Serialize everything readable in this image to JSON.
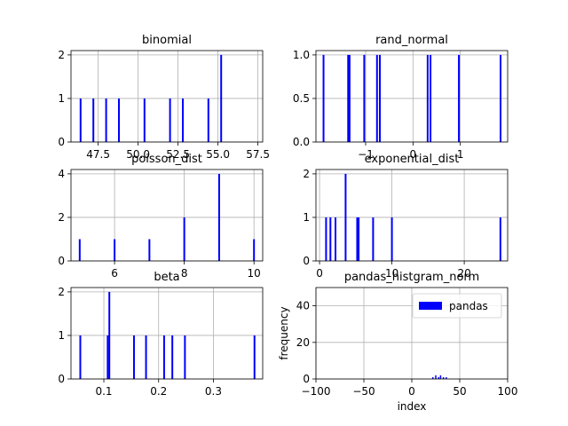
{
  "colors": {
    "bar": "#0000ff",
    "grid": "#b0b0b0",
    "axis": "#000000"
  },
  "chart_data": [
    {
      "type": "bar",
      "title": "binomial",
      "xlim": [
        45.8,
        57.8
      ],
      "ylim": [
        0,
        2.1
      ],
      "xticks": [
        47.5,
        50.0,
        52.5,
        55.0,
        57.5
      ],
      "xtick_labels": [
        "47.5",
        "50.0",
        "52.5",
        "55.0",
        "57.5"
      ],
      "yticks": [
        0,
        1,
        2
      ],
      "ytick_labels": [
        "0",
        "1",
        "2"
      ],
      "grid": true,
      "bins": [
        {
          "x": 46.4,
          "count": 1
        },
        {
          "x": 47.2,
          "count": 1
        },
        {
          "x": 48.0,
          "count": 1
        },
        {
          "x": 48.8,
          "count": 1
        },
        {
          "x": 50.4,
          "count": 1
        },
        {
          "x": 52.0,
          "count": 1
        },
        {
          "x": 52.8,
          "count": 1
        },
        {
          "x": 54.4,
          "count": 1
        },
        {
          "x": 55.2,
          "count": 2
        }
      ]
    },
    {
      "type": "bar",
      "title": "rand_normal",
      "xlim": [
        -2.05,
        2.0
      ],
      "ylim": [
        0,
        1.05
      ],
      "xticks": [
        -1,
        0,
        1
      ],
      "xtick_labels": [
        "−1",
        "0",
        "1"
      ],
      "yticks": [
        0.0,
        0.5,
        1.0
      ],
      "ytick_labels": [
        "0.0",
        "0.5",
        "1.0"
      ],
      "grid": true,
      "bins": [
        {
          "x": -1.89,
          "count": 1
        },
        {
          "x": -1.37,
          "count": 1
        },
        {
          "x": -1.34,
          "count": 1
        },
        {
          "x": -1.03,
          "count": 1
        },
        {
          "x": -0.76,
          "count": 1
        },
        {
          "x": -0.7,
          "count": 1
        },
        {
          "x": 0.31,
          "count": 1
        },
        {
          "x": 0.37,
          "count": 1
        },
        {
          "x": 0.97,
          "count": 1
        },
        {
          "x": 1.85,
          "count": 1
        }
      ]
    },
    {
      "type": "bar",
      "title": "poisson_dist",
      "xlim": [
        4.75,
        10.25
      ],
      "ylim": [
        0,
        4.2
      ],
      "xticks": [
        6,
        8,
        10
      ],
      "xtick_labels": [
        "6",
        "8",
        "10"
      ],
      "yticks": [
        0,
        2,
        4
      ],
      "ytick_labels": [
        "0",
        "2",
        "4"
      ],
      "grid": true,
      "bins": [
        {
          "x": 5.0,
          "count": 1
        },
        {
          "x": 6.0,
          "count": 1
        },
        {
          "x": 7.0,
          "count": 1
        },
        {
          "x": 8.0,
          "count": 2
        },
        {
          "x": 9.0,
          "count": 4
        },
        {
          "x": 10.0,
          "count": 1
        }
      ]
    },
    {
      "type": "bar",
      "title": "exponential_dist",
      "xlim": [
        -0.5,
        26.0
      ],
      "ylim": [
        0,
        2.1
      ],
      "xticks": [
        0,
        10,
        20
      ],
      "xtick_labels": [
        "0",
        "10",
        "20"
      ],
      "yticks": [
        0,
        1,
        2
      ],
      "ytick_labels": [
        "0",
        "1",
        "2"
      ],
      "grid": true,
      "bins": [
        {
          "x": 0.9,
          "count": 1
        },
        {
          "x": 1.5,
          "count": 1
        },
        {
          "x": 2.2,
          "count": 1
        },
        {
          "x": 3.6,
          "count": 2
        },
        {
          "x": 5.2,
          "count": 1
        },
        {
          "x": 5.4,
          "count": 1
        },
        {
          "x": 7.4,
          "count": 1
        },
        {
          "x": 10.0,
          "count": 1
        },
        {
          "x": 25.0,
          "count": 1
        }
      ]
    },
    {
      "type": "bar",
      "title": "beta",
      "xlim": [
        0.04,
        0.39
      ],
      "ylim": [
        0,
        2.1
      ],
      "xticks": [
        0.1,
        0.2,
        0.3
      ],
      "xtick_labels": [
        "0.1",
        "0.2",
        "0.3"
      ],
      "yticks": [
        0,
        1,
        2
      ],
      "ytick_labels": [
        "0",
        "1",
        "2"
      ],
      "grid": true,
      "bins": [
        {
          "x": 0.057,
          "count": 1
        },
        {
          "x": 0.107,
          "count": 1
        },
        {
          "x": 0.11,
          "count": 2
        },
        {
          "x": 0.155,
          "count": 1
        },
        {
          "x": 0.177,
          "count": 1
        },
        {
          "x": 0.21,
          "count": 1
        },
        {
          "x": 0.225,
          "count": 1
        },
        {
          "x": 0.248,
          "count": 1
        },
        {
          "x": 0.375,
          "count": 1
        }
      ]
    },
    {
      "type": "bar",
      "title": "pandas_histgram_norm",
      "xlabel": "index",
      "ylabel": "frequency",
      "xlim": [
        -100,
        100
      ],
      "ylim": [
        0,
        50
      ],
      "xticks": [
        -100,
        -50,
        0,
        50,
        100
      ],
      "xtick_labels": [
        "−100",
        "−50",
        "0",
        "50",
        "100"
      ],
      "yticks": [
        0,
        20,
        40
      ],
      "ytick_labels": [
        "0",
        "20",
        "40"
      ],
      "grid": true,
      "legend": {
        "label": "pandas",
        "placement": "top-right"
      },
      "bins": [
        {
          "x": 22,
          "count": 1
        },
        {
          "x": 25,
          "count": 2
        },
        {
          "x": 28,
          "count": 1
        },
        {
          "x": 30,
          "count": 2
        },
        {
          "x": 33,
          "count": 1
        },
        {
          "x": 36,
          "count": 1
        }
      ]
    }
  ]
}
